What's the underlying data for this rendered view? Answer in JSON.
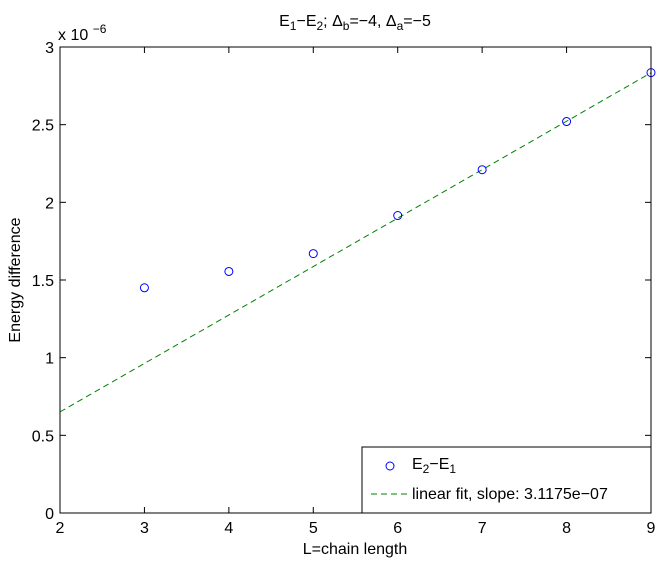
{
  "chart_data": {
    "type": "scatter",
    "title": {
      "parts": [
        {
          "t": "E",
          "sub": false
        },
        {
          "t": "1",
          "sub": true
        },
        {
          "t": "−E",
          "sub": false
        },
        {
          "t": "2",
          "sub": true
        },
        {
          "t": "; Δ",
          "sub": false
        },
        {
          "t": "b",
          "sub": true
        },
        {
          "t": "=−4, Δ",
          "sub": false
        },
        {
          "t": "a",
          "sub": true
        },
        {
          "t": "=−5",
          "sub": false
        }
      ]
    },
    "xlabel": "L=chain length",
    "ylabel": "Energy difference",
    "y_exponent_label": "x 10",
    "y_exponent_power": "−6",
    "xlim": [
      2,
      9
    ],
    "ylim": [
      0,
      3
    ],
    "y_scale_factor": 1e-06,
    "xticks": [
      2,
      3,
      4,
      5,
      6,
      7,
      8,
      9
    ],
    "xtick_labels": [
      "2",
      "3",
      "4",
      "5",
      "6",
      "7",
      "8",
      "9"
    ],
    "yticks": [
      0,
      0.5,
      1,
      1.5,
      2,
      2.5,
      3
    ],
    "ytick_labels": [
      "0",
      "0.5",
      "1",
      "1.5",
      "2",
      "2.5",
      "3"
    ],
    "grid": false,
    "legend_position": "bottom-right",
    "series": [
      {
        "kind": "markers",
        "legend": {
          "parts": [
            {
              "t": "E",
              "sub": false
            },
            {
              "t": "2",
              "sub": true
            },
            {
              "t": "−E",
              "sub": false
            },
            {
              "t": "1",
              "sub": true
            }
          ]
        },
        "color": "#0000ff",
        "marker": "circle-open",
        "x": [
          3,
          4,
          5,
          6,
          7,
          8,
          9
        ],
        "y": [
          1.45,
          1.555,
          1.67,
          1.915,
          2.21,
          2.52,
          2.835
        ]
      },
      {
        "kind": "line",
        "legend": {
          "parts": [
            {
              "t": "linear fit, slope: 3.1175e−07",
              "sub": false
            }
          ]
        },
        "color": "#008000",
        "dash": "dashed",
        "x": [
          2,
          9
        ],
        "y": [
          0.651,
          2.834
        ]
      }
    ]
  }
}
